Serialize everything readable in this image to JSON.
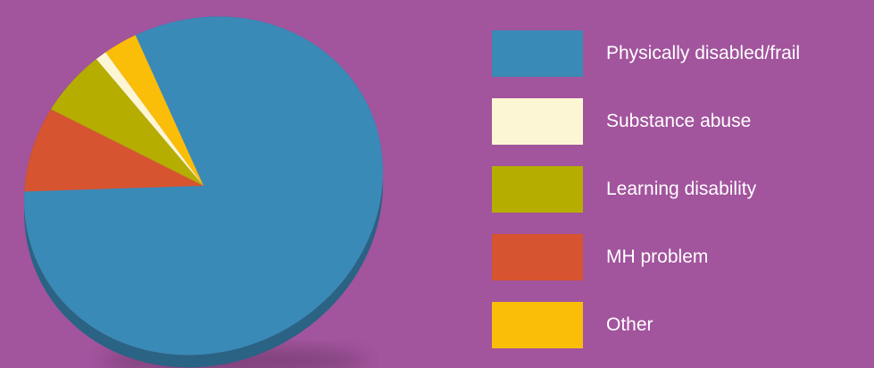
{
  "colors": {
    "background": "#a2549d",
    "physically_disabled": "#3a8ab7",
    "substance_abuse": "#fdf6d4",
    "learning_disability": "#b5ae00",
    "mh_problem": "#d6542f",
    "other": "#fbbe08"
  },
  "chart_data": {
    "type": "pie",
    "style": "3d-tilted",
    "legend_position": "right",
    "title": "",
    "slices": [
      {
        "label": "Physically disabled/frail",
        "value": 82,
        "color": "#3a8ab7"
      },
      {
        "label": "Substance abuse",
        "value": 1,
        "color": "#fdf6d4"
      },
      {
        "label": "Learning disability",
        "value": 6,
        "color": "#b5ae00"
      },
      {
        "label": "MH problem",
        "value": 8,
        "color": "#d6542f"
      },
      {
        "label": "Other",
        "value": 3,
        "color": "#fbbe08"
      }
    ]
  }
}
